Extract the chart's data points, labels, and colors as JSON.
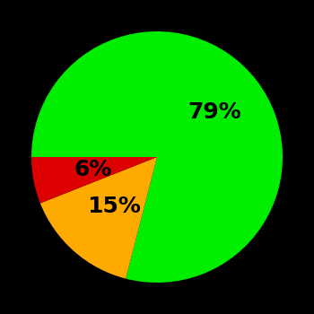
{
  "slices": [
    79,
    15,
    6
  ],
  "colors": [
    "#00ee00",
    "#ffaa00",
    "#dd0000"
  ],
  "labels": [
    "79%",
    "15%",
    "6%"
  ],
  "label_radii": [
    0.58,
    0.52,
    0.52
  ],
  "background_color": "#000000",
  "text_color": "#000000",
  "font_size": 18,
  "startangle": 180,
  "counterclock": false
}
